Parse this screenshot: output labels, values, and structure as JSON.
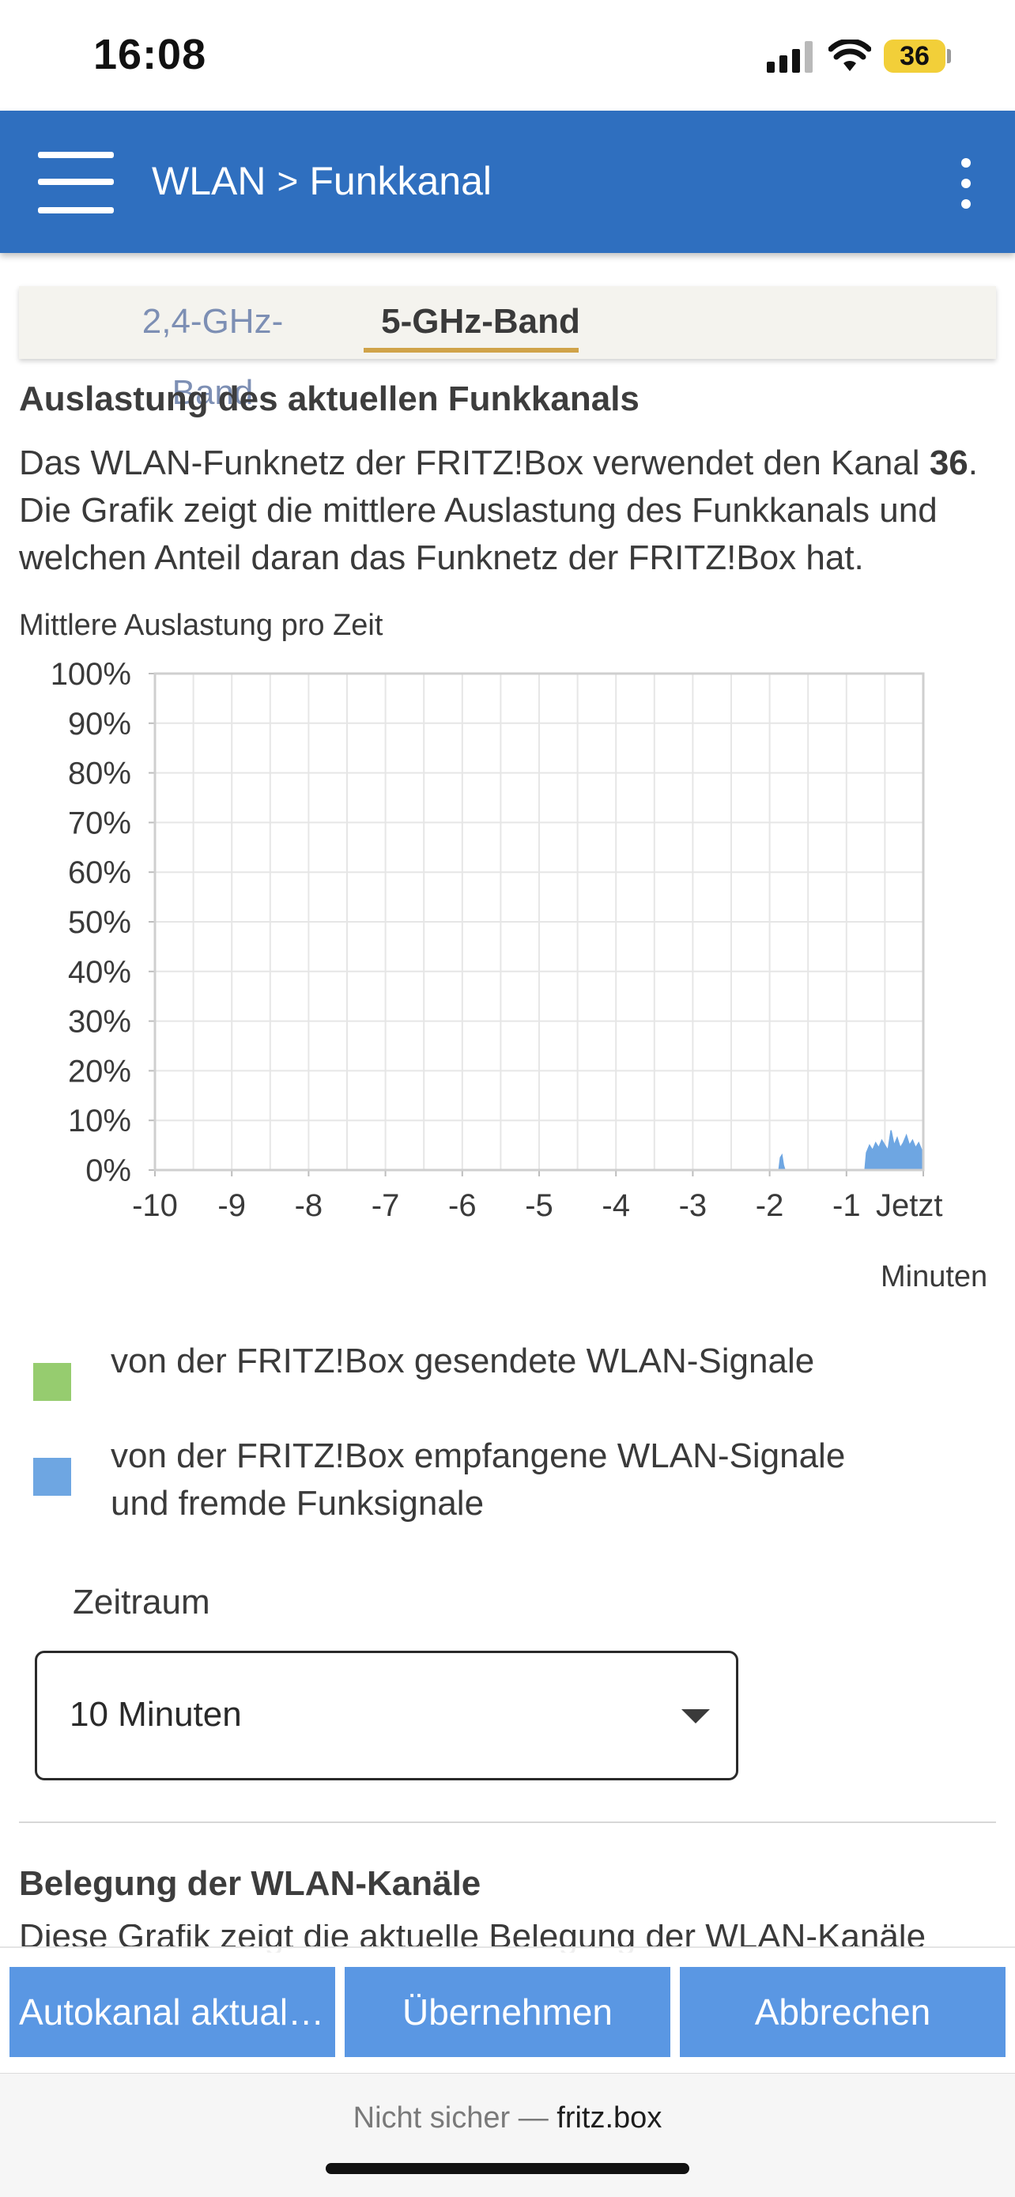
{
  "status_bar": {
    "time": "16:08",
    "battery": "36"
  },
  "header": {
    "breadcrumb_root": "WLAN",
    "separator": ">",
    "breadcrumb_current": "Funkkanal"
  },
  "tabs": [
    {
      "label": "2,4-GHz-Band",
      "active": false
    },
    {
      "label": "5-GHz-Band",
      "active": true
    }
  ],
  "section1": {
    "title": "Auslastung des aktuellen Funkkanals",
    "desc_prefix": "Das WLAN-Funknetz der FRITZ!Box verwendet den Kanal ",
    "channel": "36",
    "desc_suffix": ". Die Grafik zeigt die mittlere Auslastung des Funkkanals und welchen Anteil daran das Funknetz der FRITZ!Box hat.",
    "chart_caption": "Mittlere Auslastung pro Zeit",
    "xlabel": "Minuten"
  },
  "chart_data": {
    "type": "area",
    "title": "Mittlere Auslastung pro Zeit",
    "xlabel": "Minuten",
    "ylabel": "",
    "ylim": [
      0,
      100
    ],
    "xlim": [
      -10,
      0
    ],
    "y_ticks": [
      "0%",
      "10%",
      "20%",
      "30%",
      "40%",
      "50%",
      "60%",
      "70%",
      "80%",
      "90%",
      "100%"
    ],
    "x_ticks": [
      {
        "value": -10,
        "label": "-10"
      },
      {
        "value": -9,
        "label": "-9"
      },
      {
        "value": -8,
        "label": "-8"
      },
      {
        "value": -7,
        "label": "-7"
      },
      {
        "value": -6,
        "label": "-6"
      },
      {
        "value": -5,
        "label": "-5"
      },
      {
        "value": -4,
        "label": "-4"
      },
      {
        "value": -3,
        "label": "-3"
      },
      {
        "value": -2,
        "label": "-2"
      },
      {
        "value": -1,
        "label": "-1"
      },
      {
        "value": 0,
        "label": "Jetzt"
      }
    ],
    "grid": true,
    "series": [
      {
        "name": "von der FRITZ!Box gesendete WLAN-Signale",
        "color": "#96cc6f",
        "points": []
      },
      {
        "name": "von der FRITZ!Box empfangene WLAN-Signale und fremde Funksignale",
        "color": "#6ea6e2",
        "points": [
          [
            -10,
            0
          ],
          [
            -1.88,
            0
          ],
          [
            -1.86,
            2.5
          ],
          [
            -1.84,
            3
          ],
          [
            -1.82,
            1
          ],
          [
            -1.8,
            0
          ],
          [
            -0.76,
            0
          ],
          [
            -0.74,
            3.5
          ],
          [
            -0.7,
            5
          ],
          [
            -0.66,
            4
          ],
          [
            -0.62,
            5.5
          ],
          [
            -0.58,
            4.5
          ],
          [
            -0.54,
            6
          ],
          [
            -0.5,
            5
          ],
          [
            -0.46,
            4
          ],
          [
            -0.42,
            8
          ],
          [
            -0.38,
            5
          ],
          [
            -0.34,
            6.5
          ],
          [
            -0.3,
            4.5
          ],
          [
            -0.26,
            5.5
          ],
          [
            -0.22,
            7
          ],
          [
            -0.18,
            5
          ],
          [
            -0.14,
            6
          ],
          [
            -0.1,
            4.5
          ],
          [
            -0.06,
            5.5
          ],
          [
            -0.02,
            4
          ],
          [
            0,
            4
          ]
        ]
      }
    ]
  },
  "legend": [
    {
      "label": "von der FRITZ!Box gesendete WLAN-Signale",
      "color": "#96cc6f"
    },
    {
      "label": "von der FRITZ!Box empfangene WLAN-Signale und fremde Funksignale",
      "color": "#6ea6e2"
    }
  ],
  "period": {
    "label": "Zeitraum",
    "value": "10 Minuten"
  },
  "section2": {
    "title": "Belegung der WLAN-Kanäle",
    "desc": "Diese Grafik zeigt die aktuelle Belegung der WLAN-Kanäle"
  },
  "actions": {
    "autochannel": "Autokanal aktualisieren",
    "apply": "Übernehmen",
    "cancel": "Abbrechen"
  },
  "browser": {
    "prefix": "Nicht sicher — ",
    "host": "fritz.box"
  }
}
